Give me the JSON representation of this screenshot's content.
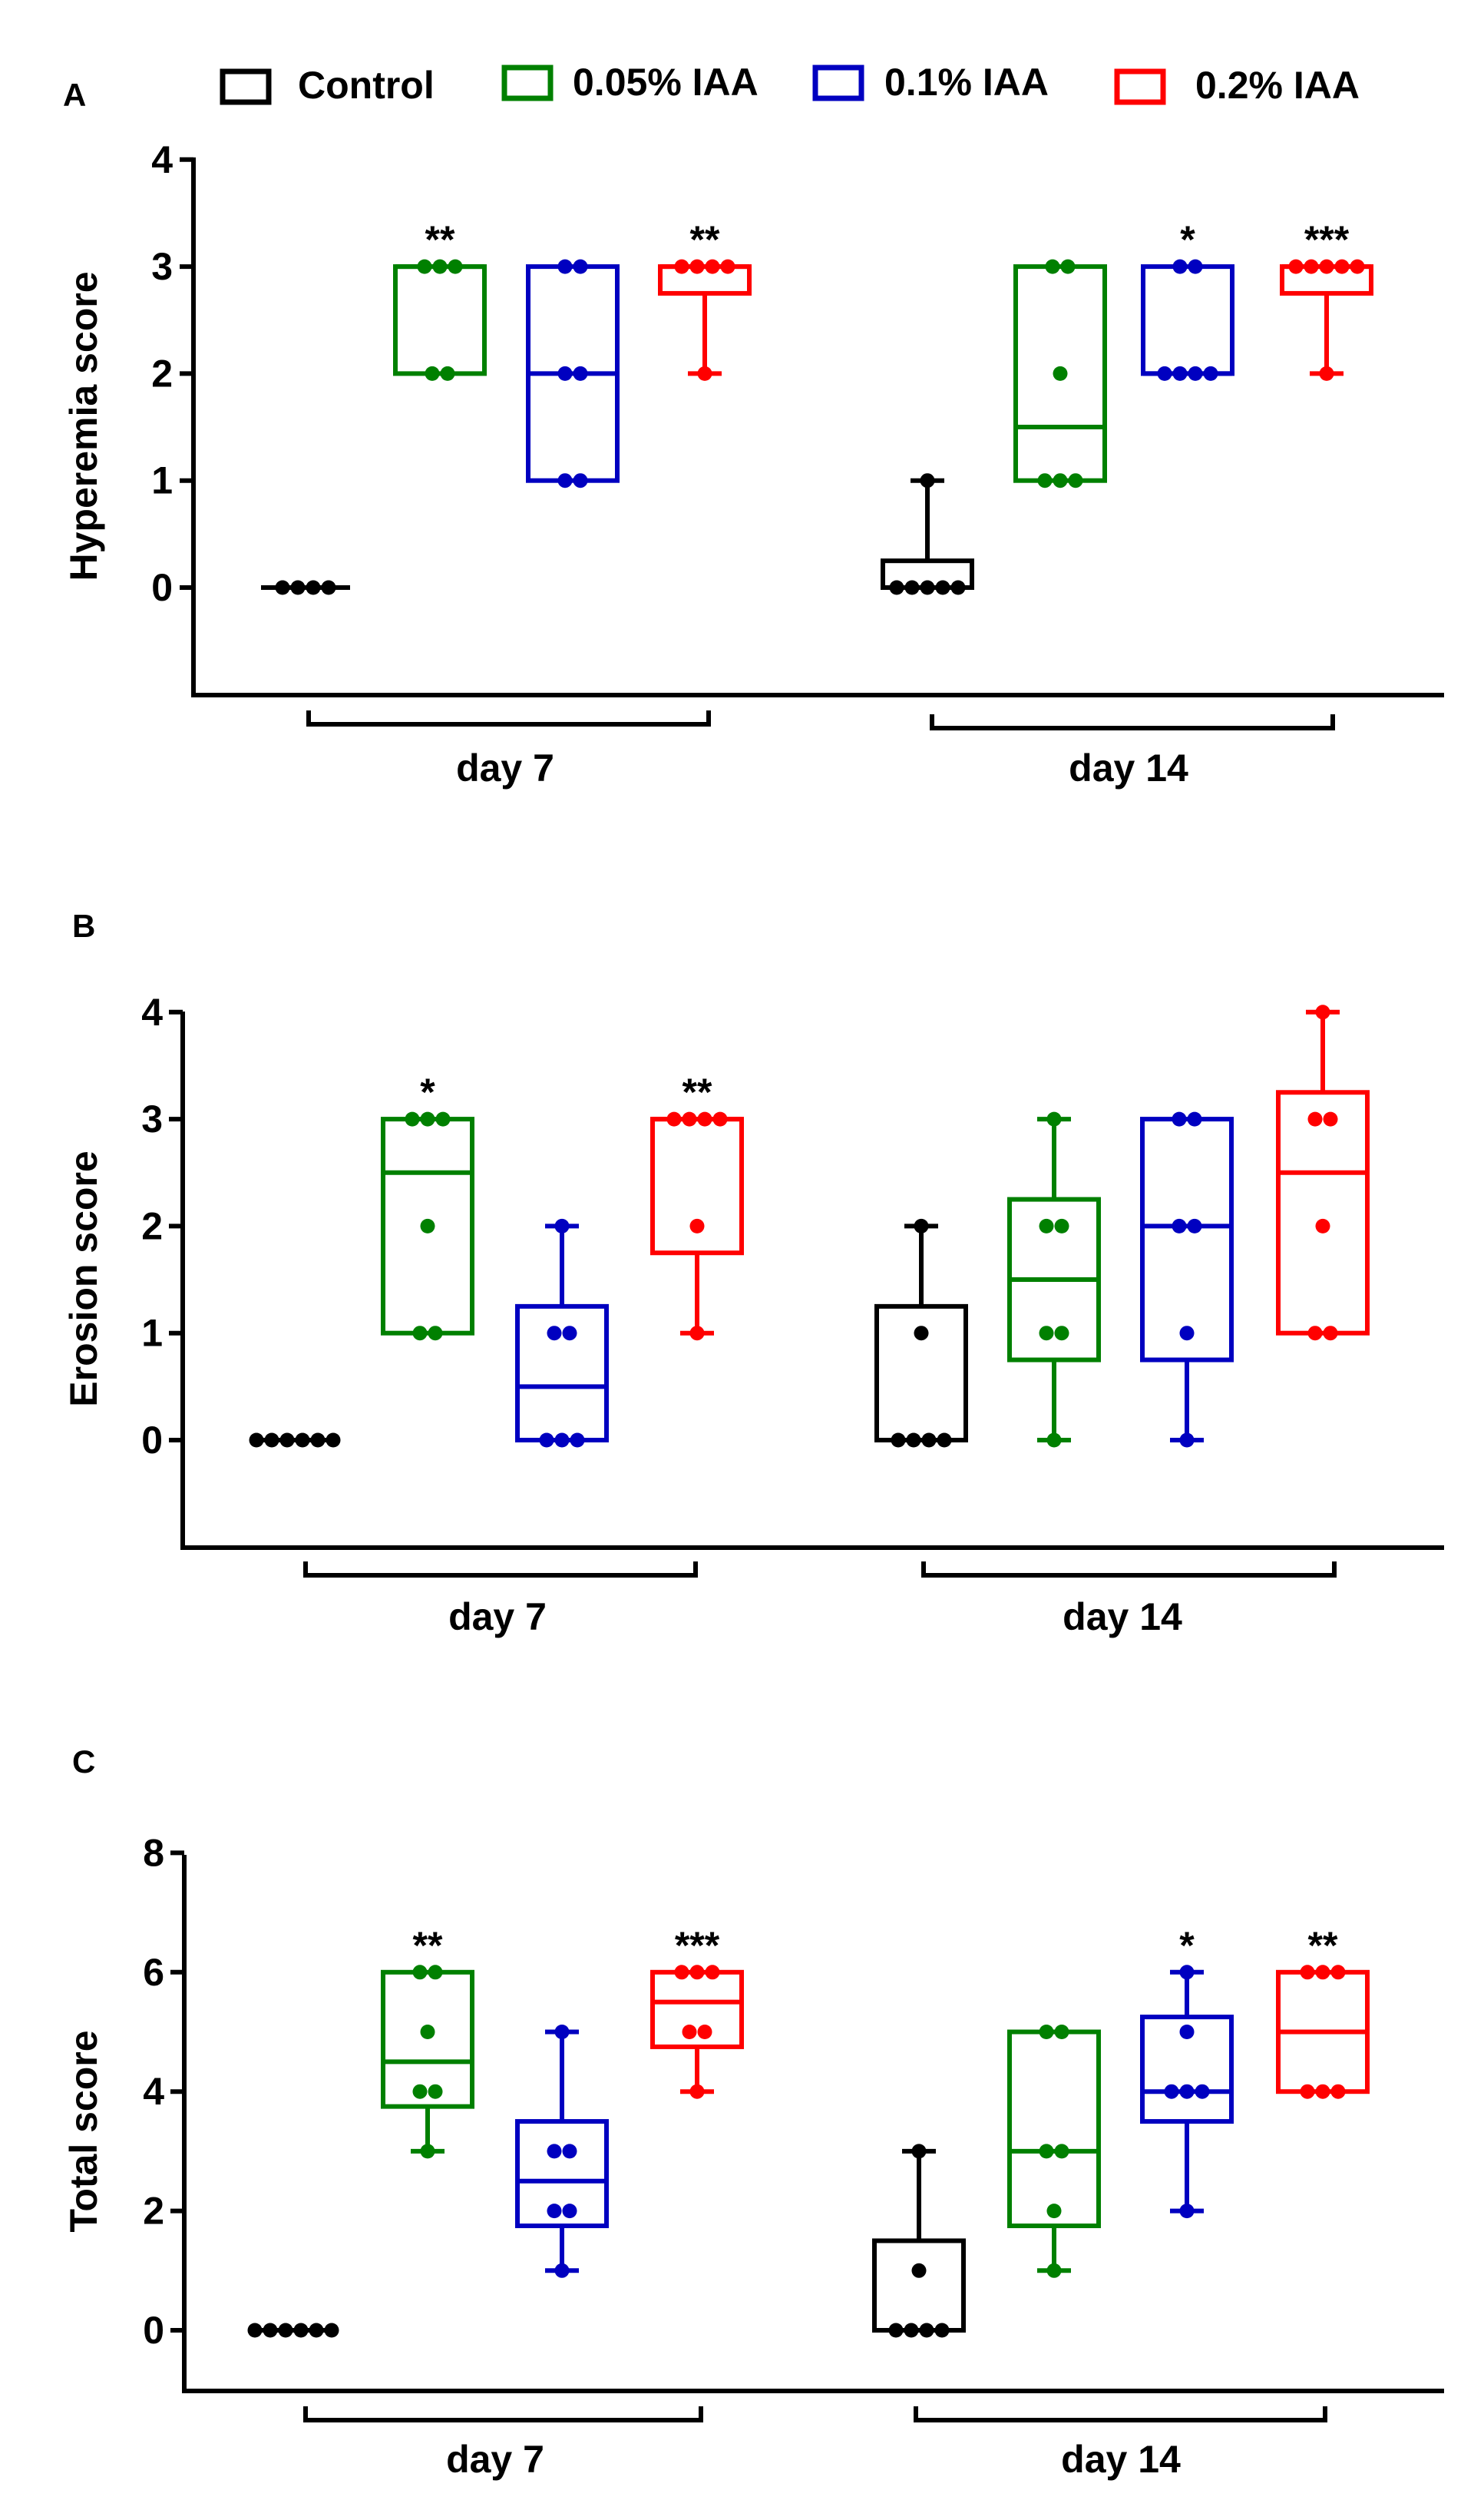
{
  "legend": [
    {
      "label": "Control",
      "color": "#000000"
    },
    {
      "label": "0.05% IAA",
      "color": "#008000"
    },
    {
      "label": "0.1% IAA",
      "color": "#0000c0"
    },
    {
      "label": "0.2% IAA",
      "color": "#ff0000"
    }
  ],
  "chart_data": [
    {
      "type": "box",
      "panel": "A",
      "ylabel": "Hyperemia score",
      "ylim": [
        -1,
        4
      ],
      "yticks": [
        0,
        1,
        2,
        3,
        4
      ],
      "group_labels": [
        "day 7",
        "day 14"
      ],
      "boxes": [
        {
          "group": "day 7",
          "series": "Control",
          "min": 0,
          "q1": 0,
          "median": 0,
          "q3": 0,
          "max": 0,
          "points": [
            0,
            0,
            0,
            0
          ],
          "sig": ""
        },
        {
          "group": "day 7",
          "series": "0.05% IAA",
          "min": 2,
          "q1": 2,
          "median": 3,
          "q3": 3,
          "max": 3,
          "points": [
            2,
            2,
            3,
            3,
            3
          ],
          "sig": "**"
        },
        {
          "group": "day 7",
          "series": "0.1% IAA",
          "min": 1,
          "q1": 1,
          "median": 2,
          "q3": 3,
          "max": 3,
          "points": [
            1,
            1,
            2,
            2,
            3,
            3
          ],
          "sig": ""
        },
        {
          "group": "day 7",
          "series": "0.2% IAA",
          "min": 2,
          "q1": 2.75,
          "median": 3,
          "q3": 3,
          "max": 3,
          "points": [
            2,
            3,
            3,
            3,
            3
          ],
          "sig": "**"
        },
        {
          "group": "day 14",
          "series": "Control",
          "min": 0,
          "q1": 0,
          "median": 0,
          "q3": 0.25,
          "max": 1,
          "points": [
            0,
            0,
            0,
            0,
            0,
            1
          ],
          "sig": ""
        },
        {
          "group": "day 14",
          "series": "0.05% IAA",
          "min": 1,
          "q1": 1,
          "median": 1.5,
          "q3": 3,
          "max": 3,
          "points": [
            1,
            1,
            1,
            2,
            3,
            3
          ],
          "sig": ""
        },
        {
          "group": "day 14",
          "series": "0.1% IAA",
          "min": 2,
          "q1": 2,
          "median": 2,
          "q3": 3,
          "max": 3,
          "points": [
            2,
            2,
            2,
            2,
            3,
            3
          ],
          "sig": "*"
        },
        {
          "group": "day 14",
          "series": "0.2% IAA",
          "min": 2,
          "q1": 2.75,
          "median": 3,
          "q3": 3,
          "max": 3,
          "points": [
            2,
            3,
            3,
            3,
            3,
            3
          ],
          "sig": "***"
        }
      ]
    },
    {
      "type": "box",
      "panel": "B",
      "ylabel": "Erosion score",
      "ylim": [
        -1,
        4
      ],
      "yticks": [
        0,
        1,
        2,
        3,
        4
      ],
      "group_labels": [
        "day 7",
        "day 14"
      ],
      "boxes": [
        {
          "group": "day 7",
          "series": "Control",
          "min": 0,
          "q1": 0,
          "median": 0,
          "q3": 0,
          "max": 0,
          "points": [
            0,
            0,
            0,
            0,
            0,
            0
          ],
          "sig": ""
        },
        {
          "group": "day 7",
          "series": "0.05% IAA",
          "min": 1,
          "q1": 1,
          "median": 2.5,
          "q3": 3,
          "max": 3,
          "points": [
            1,
            1,
            2,
            3,
            3,
            3
          ],
          "sig": "*"
        },
        {
          "group": "day 7",
          "series": "0.1% IAA",
          "min": 0,
          "q1": 0,
          "median": 0.5,
          "q3": 1.25,
          "max": 2,
          "points": [
            0,
            0,
            0,
            1,
            1,
            2
          ],
          "sig": ""
        },
        {
          "group": "day 7",
          "series": "0.2% IAA",
          "min": 1,
          "q1": 1.75,
          "median": 3,
          "q3": 3,
          "max": 3,
          "points": [
            1,
            2,
            3,
            3,
            3,
            3
          ],
          "sig": "**"
        },
        {
          "group": "day 14",
          "series": "Control",
          "min": 0,
          "q1": 0,
          "median": 0,
          "q3": 1.25,
          "max": 2,
          "points": [
            0,
            0,
            0,
            0,
            1,
            2
          ],
          "sig": ""
        },
        {
          "group": "day 14",
          "series": "0.05% IAA",
          "min": 0,
          "q1": 0.75,
          "median": 1.5,
          "q3": 2.25,
          "max": 3,
          "points": [
            0,
            1,
            1,
            2,
            2,
            3
          ],
          "sig": ""
        },
        {
          "group": "day 14",
          "series": "0.1% IAA",
          "min": 0,
          "q1": 0.75,
          "median": 2,
          "q3": 3,
          "max": 3,
          "points": [
            0,
            1,
            2,
            2,
            3,
            3
          ],
          "sig": ""
        },
        {
          "group": "day 14",
          "series": "0.2% IAA",
          "min": 1,
          "q1": 1,
          "median": 2.5,
          "q3": 3.25,
          "max": 4,
          "points": [
            1,
            1,
            2,
            3,
            3,
            4
          ],
          "sig": ""
        }
      ]
    },
    {
      "type": "box",
      "panel": "C",
      "ylabel": "Total score",
      "ylim": [
        -1,
        8
      ],
      "yticks": [
        0,
        2,
        4,
        6,
        8
      ],
      "group_labels": [
        "day 7",
        "day 14"
      ],
      "boxes": [
        {
          "group": "day 7",
          "series": "Control",
          "min": 0,
          "q1": 0,
          "median": 0,
          "q3": 0,
          "max": 0,
          "points": [
            0,
            0,
            0,
            0,
            0,
            0
          ],
          "sig": ""
        },
        {
          "group": "day 7",
          "series": "0.05% IAA",
          "min": 3,
          "q1": 3.75,
          "median": 4.5,
          "q3": 6,
          "max": 6,
          "points": [
            3,
            4,
            4,
            5,
            6,
            6
          ],
          "sig": "**"
        },
        {
          "group": "day 7",
          "series": "0.1% IAA",
          "min": 1,
          "q1": 1.75,
          "median": 2.5,
          "q3": 3.5,
          "max": 5,
          "points": [
            1,
            2,
            2,
            3,
            3,
            5
          ],
          "sig": ""
        },
        {
          "group": "day 7",
          "series": "0.2% IAA",
          "min": 4,
          "q1": 4.75,
          "median": 5.5,
          "q3": 6,
          "max": 6,
          "points": [
            4,
            5,
            5,
            6,
            6,
            6
          ],
          "sig": "***"
        },
        {
          "group": "day 14",
          "series": "Control",
          "min": 0,
          "q1": 0,
          "median": 0,
          "q3": 1.5,
          "max": 3,
          "points": [
            0,
            0,
            0,
            0,
            1,
            3
          ],
          "sig": ""
        },
        {
          "group": "day 14",
          "series": "0.05% IAA",
          "min": 1,
          "q1": 1.75,
          "median": 3,
          "q3": 5,
          "max": 5,
          "points": [
            1,
            2,
            3,
            3,
            5,
            5
          ],
          "sig": ""
        },
        {
          "group": "day 14",
          "series": "0.1% IAA",
          "min": 2,
          "q1": 3.5,
          "median": 4,
          "q3": 5.25,
          "max": 6,
          "points": [
            2,
            4,
            4,
            4,
            5,
            6
          ],
          "sig": "*"
        },
        {
          "group": "day 14",
          "series": "0.2% IAA",
          "min": 4,
          "q1": 4,
          "median": 5,
          "q3": 6,
          "max": 6,
          "points": [
            4,
            4,
            4,
            6,
            6,
            6
          ],
          "sig": "**"
        }
      ]
    }
  ]
}
